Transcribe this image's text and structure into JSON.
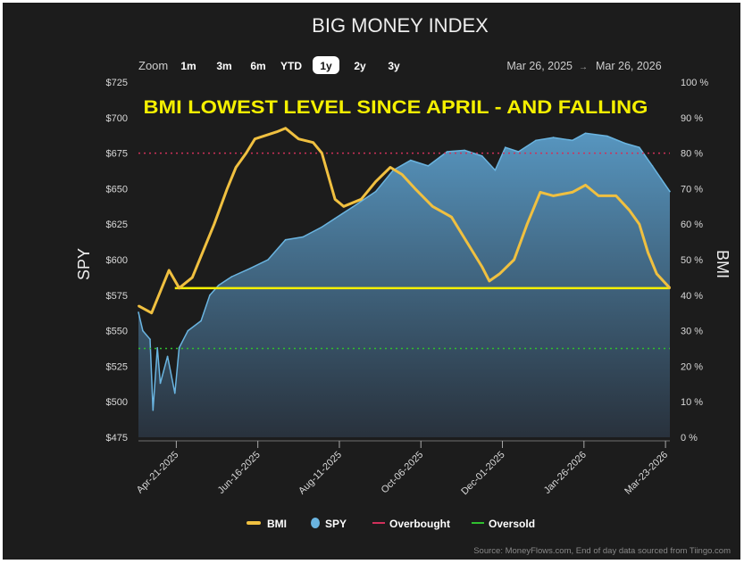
{
  "title": "BIG MONEY INDEX",
  "zoom": {
    "label": "Zoom",
    "options": [
      "1m",
      "3m",
      "6m",
      "YTD",
      "1y",
      "2y",
      "3y"
    ],
    "selected": "1y"
  },
  "range": {
    "from": "Mar 26, 2025",
    "arrow": "→",
    "to": "Mar 26, 2026"
  },
  "annotation": "BMI LOWEST LEVEL SINCE APRIL - AND FALLING",
  "source": "Source: MoneyFlows.com, End of day data sourced from Tiingo.com",
  "colors": {
    "bmi": "#f0c040",
    "spy": "#6ab4e0",
    "overbought": "#d0305a",
    "oversold": "#30c030",
    "annotation": "#f5f000",
    "level": "#f5f000"
  },
  "chart_data": {
    "type": "line",
    "title": "BIG MONEY INDEX",
    "x_unit": "days since Mar 26, 2025",
    "xlim": [
      0,
      365
    ],
    "left_axis": {
      "label": "SPY",
      "ylim": [
        475,
        725
      ],
      "ticks": [
        "$475",
        "$500",
        "$525",
        "$550",
        "$575",
        "$600",
        "$625",
        "$650",
        "$675",
        "$700",
        "$725"
      ]
    },
    "right_axis": {
      "label": "BMI",
      "ylim": [
        0,
        100
      ],
      "ticks": [
        "0 %",
        "10 %",
        "20 %",
        "30 %",
        "40 %",
        "50 %",
        "60 %",
        "70 %",
        "80 %",
        "90 %",
        "100 %"
      ]
    },
    "x_ticks": [
      {
        "day": 26,
        "label": "Apr-21-2025"
      },
      {
        "day": 82,
        "label": "Jun-16-2025"
      },
      {
        "day": 138,
        "label": "Aug-11-2025"
      },
      {
        "day": 194,
        "label": "Oct-06-2025"
      },
      {
        "day": 250,
        "label": "Dec-01-2025"
      },
      {
        "day": 306,
        "label": "Jan-26-2026"
      },
      {
        "day": 362,
        "label": "Mar-23-2026"
      }
    ],
    "series": [
      {
        "name": "BMI",
        "axis": "right",
        "x": [
          0,
          9,
          21,
          28,
          37,
          52,
          61,
          67,
          74,
          80,
          95,
          101,
          110,
          120,
          126,
          135,
          141,
          153,
          163,
          173,
          181,
          190,
          202,
          215,
          221,
          230,
          236,
          241,
          248,
          258,
          267,
          276,
          285,
          298,
          307,
          316,
          328,
          337,
          344,
          350,
          356,
          365
        ],
        "y": [
          37,
          35,
          47,
          42,
          45,
          60,
          70,
          76,
          80,
          84,
          86,
          87,
          84,
          83,
          80,
          67,
          65,
          67,
          72,
          76,
          74,
          70,
          65,
          62,
          58,
          52,
          48,
          44,
          46,
          50,
          60,
          69,
          68,
          69,
          71,
          68,
          68,
          64,
          60,
          52,
          46,
          42
        ]
      },
      {
        "name": "SPY",
        "axis": "left",
        "x": [
          0,
          3,
          8,
          10,
          13,
          15,
          20,
          25,
          28,
          34,
          43,
          49,
          55,
          64,
          77,
          89,
          101,
          113,
          126,
          135,
          147,
          163,
          175,
          187,
          199,
          212,
          224,
          236,
          245,
          252,
          261,
          273,
          285,
          298,
          307,
          322,
          334,
          344,
          353,
          359,
          365
        ],
        "y": [
          563,
          550,
          544,
          494,
          538,
          513,
          532,
          506,
          538,
          550,
          557,
          575,
          582,
          588,
          594,
          600,
          614,
          616,
          623,
          629,
          637,
          648,
          663,
          670,
          666,
          676,
          677,
          673,
          663,
          679,
          676,
          684,
          686,
          684,
          689,
          687,
          682,
          679,
          666,
          657,
          648
        ]
      }
    ],
    "reference_lines": [
      {
        "name": "Overbought",
        "axis": "right",
        "value": 80,
        "style": "dotted"
      },
      {
        "name": "Oversold",
        "axis": "right",
        "value": 25,
        "style": "dotted"
      },
      {
        "name": "BMI level",
        "axis": "right",
        "value": 42,
        "style": "solid",
        "from_day": 25
      }
    ],
    "legend": [
      "BMI",
      "SPY",
      "Overbought",
      "Oversold"
    ],
    "legend_position": "bottom"
  }
}
